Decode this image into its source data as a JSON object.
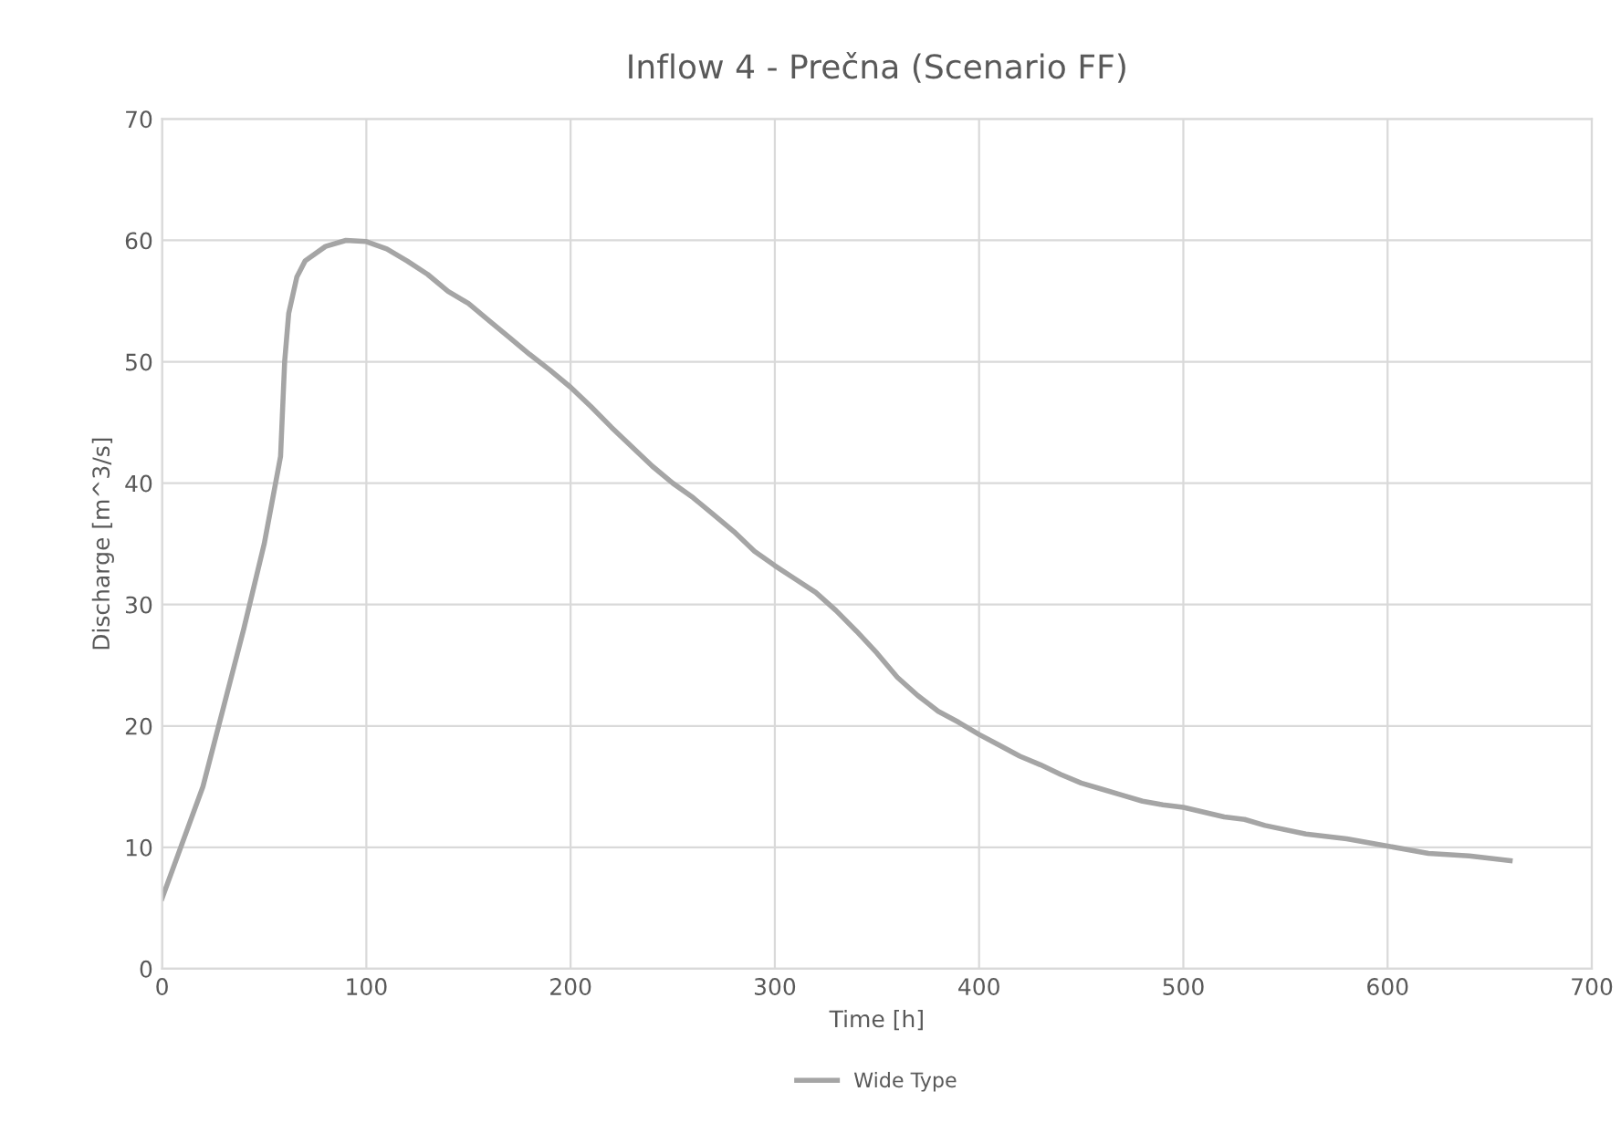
{
  "chart_data": {
    "type": "line",
    "title": "Inflow 4 - Prečna (Scenario FF)",
    "xlabel": "Time [h]",
    "ylabel": "Discharge [m^3/s]",
    "x": [
      0,
      20,
      40,
      50,
      58,
      60,
      62,
      66,
      70,
      80,
      90,
      100,
      110,
      120,
      130,
      140,
      150,
      160,
      170,
      180,
      190,
      200,
      210,
      220,
      230,
      240,
      250,
      260,
      270,
      280,
      290,
      300,
      310,
      320,
      330,
      340,
      350,
      360,
      370,
      380,
      390,
      400,
      410,
      420,
      430,
      440,
      450,
      460,
      470,
      480,
      490,
      500,
      510,
      520,
      530,
      540,
      560,
      580,
      600,
      620,
      640,
      660
    ],
    "series": [
      {
        "name": "Wide Type",
        "color": "#a5a5a5",
        "values": [
          5.8,
          15,
          28,
          35,
          42.2,
          50,
          54,
          57,
          58.3,
          59.5,
          60,
          59.9,
          59.3,
          58.3,
          57.2,
          55.8,
          54.8,
          53.4,
          52,
          50.6,
          49.3,
          47.9,
          46.3,
          44.6,
          43,
          41.4,
          40,
          38.8,
          37.4,
          36,
          34.4,
          33.2,
          32.1,
          31,
          29.5,
          27.8,
          26,
          24,
          22.5,
          21.2,
          20.3,
          19.3,
          18.4,
          17.5,
          16.8,
          16,
          15.3,
          14.8,
          14.3,
          13.8,
          13.5,
          13.3,
          12.9,
          12.5,
          12.3,
          11.8,
          11.1,
          10.7,
          10.1,
          9.5,
          9.3,
          8.9
        ]
      }
    ],
    "xlim": [
      0,
      700
    ],
    "xticks": [
      0,
      100,
      200,
      300,
      400,
      500,
      600,
      700
    ],
    "ylim": [
      0,
      70
    ],
    "yticks": [
      0,
      10,
      20,
      30,
      40,
      50,
      60,
      70
    ],
    "grid": true,
    "legend": "bottom",
    "marker": "none",
    "line_style": "solid"
  }
}
